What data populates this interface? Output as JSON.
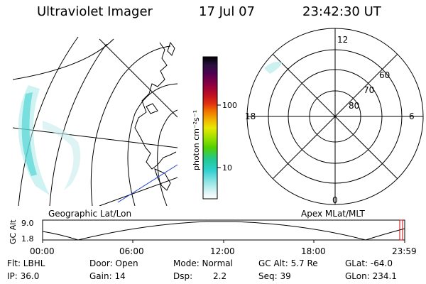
{
  "header": {
    "title": "Ultraviolet Imager",
    "date": "17 Jul 07",
    "time": "23:42:30 UT"
  },
  "colorbar": {
    "unit_label": "photon cm⁻²s⁻¹",
    "ticks": [
      "100",
      "10"
    ],
    "colors": [
      "#000000",
      "#202040",
      "#400050",
      "#700050",
      "#a00040",
      "#c01020",
      "#e03010",
      "#f06000",
      "#f09000",
      "#f0c000",
      "#e8e800",
      "#a0e000",
      "#60d000",
      "#20d080",
      "#20c8c8",
      "#80e0e0",
      "#c0f0f0",
      "#ffffff"
    ]
  },
  "geo_map": {
    "caption": "Geographic Lat/Lon",
    "aurora_color": "#40d0d0"
  },
  "polar_plot": {
    "caption": "Apex MLat/MLT",
    "lat_labels": [
      "60",
      "70",
      "80"
    ],
    "mlt_labels": [
      "12",
      "18",
      "6",
      "0"
    ]
  },
  "altitude_strip": {
    "axis_label": "GC Alt",
    "y_max": "9.0",
    "y_min": "1.8",
    "x_ticks": [
      "00:00",
      "06:00",
      "12:00",
      "18:00",
      "23:59"
    ],
    "marker_color": "#cc0000"
  },
  "status": {
    "row1": {
      "filter": "Flt: LBHL",
      "door": "Door: Open",
      "mode": "Mode: Normal",
      "gc_alt": "GC Alt: 5.7 Re",
      "glat": "GLat: -64.0"
    },
    "row2": {
      "ip": "IP: 36.0",
      "gain": "Gain: 14",
      "dsp_label": "Dsp:",
      "dsp_value": "2.2",
      "seq": "Seq: 39",
      "glon": "GLon: 234.1"
    }
  }
}
